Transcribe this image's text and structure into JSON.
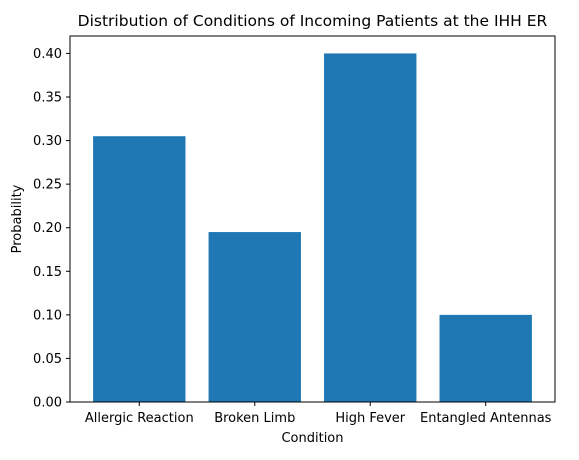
{
  "chart_data": {
    "type": "bar",
    "title": "Distribution of Conditions of Incoming Patients at the IHH ER",
    "xlabel": "Condition",
    "ylabel": "Probability",
    "categories": [
      "Allergic Reaction",
      "Broken Limb",
      "High Fever",
      "Entangled Antennas"
    ],
    "values": [
      0.305,
      0.195,
      0.4,
      0.1
    ],
    "ylim": [
      0,
      0.42
    ],
    "yticks": [
      "0.00",
      "0.05",
      "0.10",
      "0.15",
      "0.20",
      "0.25",
      "0.30",
      "0.35",
      "0.40"
    ],
    "grid": false,
    "legend": "none",
    "bar_color": "#1f77b4"
  }
}
